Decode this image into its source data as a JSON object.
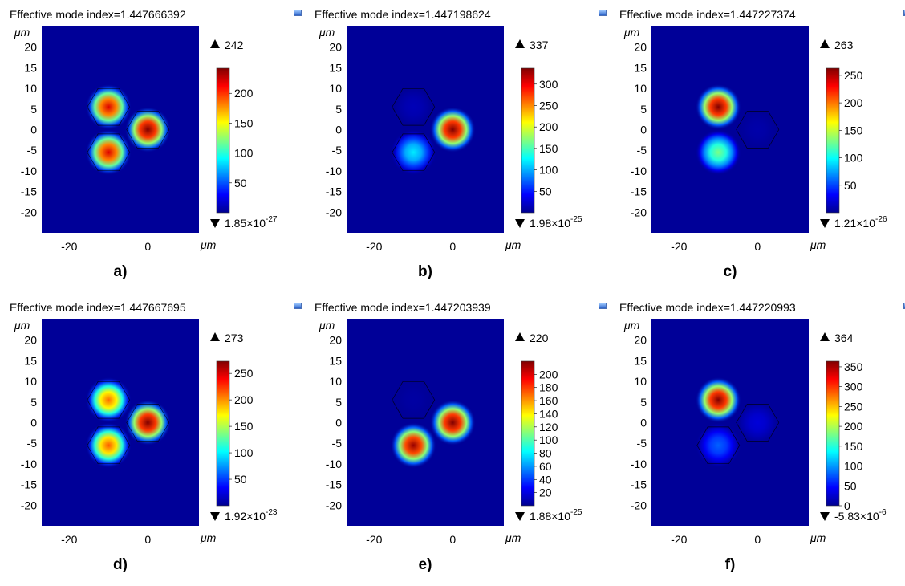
{
  "unit_label": "μm",
  "colormap": [
    "#00008f",
    "#0000ff",
    "#0080ff",
    "#00ffff",
    "#80ff80",
    "#ffff00",
    "#ff8000",
    "#ff0000",
    "#800000"
  ],
  "chart_data": [
    {
      "caption": "a)",
      "title": "Effective mode index=1.447666392",
      "type": "heatmap",
      "x_ticks": [
        -20,
        0
      ],
      "y_ticks": [
        20,
        15,
        10,
        5,
        0,
        -5,
        -10,
        -15,
        -20
      ],
      "xlim": [
        -27,
        13
      ],
      "ylim": [
        -25,
        25
      ],
      "max_label": "242",
      "min_label": {
        "mantissa": "1.85",
        "times": "×10",
        "exp": "-27"
      },
      "colorbar_ticks": [
        200,
        150,
        100,
        50
      ],
      "colorbar_range": [
        0,
        242
      ],
      "cores": [
        {
          "x": -10,
          "y": 5.5,
          "peak": 220,
          "hex": true
        },
        {
          "x": -10,
          "y": -5.5,
          "peak": 220,
          "hex": true
        },
        {
          "x": 0,
          "y": 0,
          "peak": 242,
          "hex": true
        }
      ]
    },
    {
      "caption": "b)",
      "title": "Effective mode index=1.447198624",
      "type": "heatmap",
      "x_ticks": [
        -20,
        0
      ],
      "y_ticks": [
        20,
        15,
        10,
        5,
        0,
        -5,
        -10,
        -15,
        -20
      ],
      "xlim": [
        -27,
        13
      ],
      "ylim": [
        -25,
        25
      ],
      "max_label": "337",
      "min_label": {
        "mantissa": "1.98",
        "times": "×10",
        "exp": "-25"
      },
      "colorbar_ticks": [
        300,
        250,
        200,
        150,
        100,
        50
      ],
      "colorbar_range": [
        0,
        337
      ],
      "cores": [
        {
          "x": -10,
          "y": 5.5,
          "peak": 15,
          "hex": true
        },
        {
          "x": -10,
          "y": -5.5,
          "peak": 120,
          "hex": true
        },
        {
          "x": 0,
          "y": 0,
          "peak": 337,
          "hex": false
        }
      ]
    },
    {
      "caption": "c)",
      "title": "Effective mode index=1.447227374",
      "type": "heatmap",
      "x_ticks": [
        -20,
        0
      ],
      "y_ticks": [
        20,
        15,
        10,
        5,
        0,
        -5,
        -10,
        -15,
        -20
      ],
      "xlim": [
        -27,
        13
      ],
      "ylim": [
        -25,
        25
      ],
      "max_label": "263",
      "min_label": {
        "mantissa": "1.21",
        "times": "×10",
        "exp": "-26"
      },
      "colorbar_ticks": [
        250,
        200,
        150,
        100,
        50
      ],
      "colorbar_range": [
        0,
        263
      ],
      "cores": [
        {
          "x": -10,
          "y": 5.5,
          "peak": 263,
          "hex": false
        },
        {
          "x": -10,
          "y": -5.5,
          "peak": 130,
          "hex": false
        },
        {
          "x": 0,
          "y": 0,
          "peak": 8,
          "hex": true
        }
      ]
    },
    {
      "caption": "d)",
      "title": "Effective mode index=1.447667695",
      "type": "heatmap",
      "x_ticks": [
        -20,
        0
      ],
      "y_ticks": [
        20,
        15,
        10,
        5,
        0,
        -5,
        -10,
        -15,
        -20
      ],
      "xlim": [
        -27,
        13
      ],
      "ylim": [
        -25,
        25
      ],
      "max_label": "273",
      "min_label": {
        "mantissa": "1.92",
        "times": "×10",
        "exp": "-23"
      },
      "colorbar_ticks": [
        250,
        200,
        150,
        100,
        50
      ],
      "colorbar_range": [
        0,
        273
      ],
      "cores": [
        {
          "x": -10,
          "y": 5.5,
          "peak": 210,
          "hex": true
        },
        {
          "x": -10,
          "y": -5.5,
          "peak": 215,
          "hex": true
        },
        {
          "x": 0,
          "y": 0,
          "peak": 273,
          "hex": true
        }
      ]
    },
    {
      "caption": "e)",
      "title": "Effective mode index=1.447203939",
      "type": "heatmap",
      "x_ticks": [
        -20,
        0
      ],
      "y_ticks": [
        20,
        15,
        10,
        5,
        0,
        -5,
        -10,
        -15,
        -20
      ],
      "xlim": [
        -27,
        13
      ],
      "ylim": [
        -25,
        25
      ],
      "max_label": "220",
      "min_label": {
        "mantissa": "1.88",
        "times": "×10",
        "exp": "-25"
      },
      "colorbar_ticks": [
        200,
        180,
        160,
        140,
        120,
        100,
        80,
        60,
        40,
        20
      ],
      "colorbar_range": [
        0,
        220
      ],
      "cores": [
        {
          "x": -10,
          "y": 5.5,
          "peak": 5,
          "hex": true
        },
        {
          "x": -10,
          "y": -5.5,
          "peak": 215,
          "hex": false
        },
        {
          "x": 0,
          "y": 0,
          "peak": 220,
          "hex": false
        }
      ]
    },
    {
      "caption": "f)",
      "title": "Effective mode index=1.447220993",
      "type": "heatmap",
      "x_ticks": [
        -20,
        0
      ],
      "y_ticks": [
        20,
        15,
        10,
        5,
        0,
        -5,
        -10,
        -15,
        -20
      ],
      "xlim": [
        -27,
        13
      ],
      "ylim": [
        -25,
        25
      ],
      "max_label": "364",
      "min_label": {
        "mantissa": "-5.83",
        "times": "×10",
        "exp": "-6"
      },
      "colorbar_ticks": [
        350,
        300,
        250,
        200,
        150,
        100,
        50,
        0
      ],
      "colorbar_range": [
        0,
        364
      ],
      "cores": [
        {
          "x": -10,
          "y": 5.5,
          "peak": 364,
          "hex": false
        },
        {
          "x": -10,
          "y": -5.5,
          "peak": 80,
          "hex": true
        },
        {
          "x": 0,
          "y": 0,
          "peak": 30,
          "hex": true
        }
      ]
    }
  ]
}
